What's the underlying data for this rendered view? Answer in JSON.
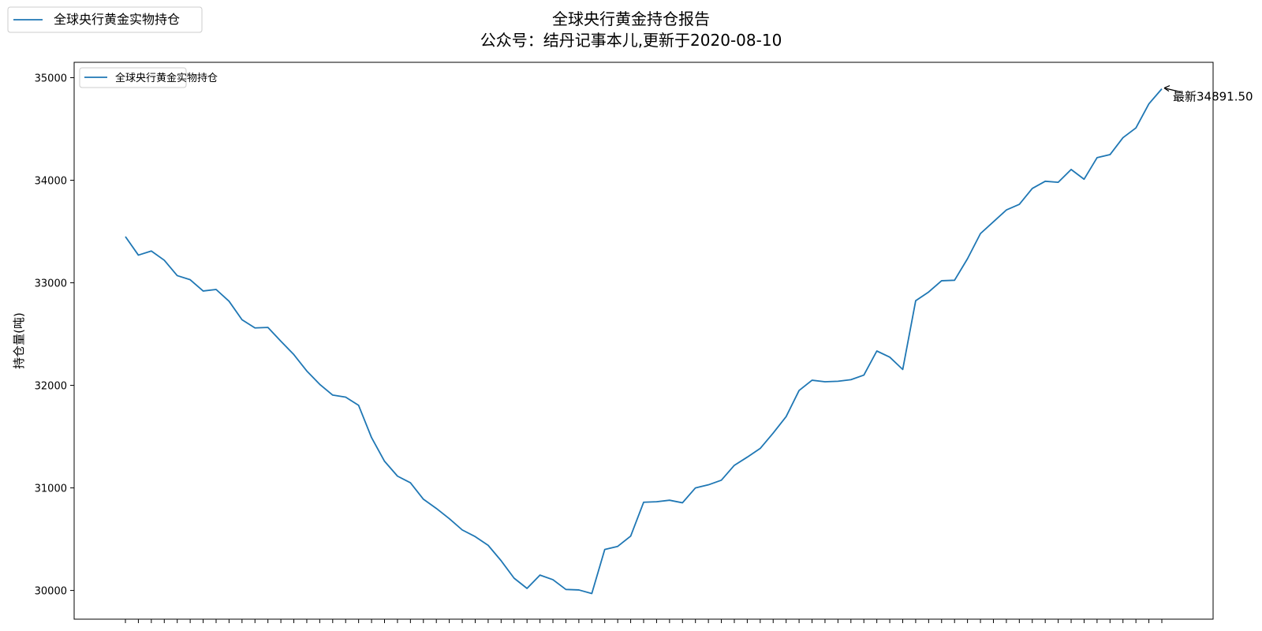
{
  "figure": {
    "title_line1": "全球央行黄金持仓报告",
    "title_line2": "公众号：结丹记事本儿,更新于2020-08-10"
  },
  "legends": {
    "outer_label": "全球央行黄金实物持仓",
    "inner_label": "全球央行黄金实物持仓"
  },
  "annotation": {
    "text": "最新34891.50"
  },
  "colors": {
    "line": "#1f77b4",
    "axes": "#000000",
    "legend_border": "#cccccc"
  },
  "chart_data": {
    "type": "line",
    "title": "全球央行黄金持仓报告",
    "subtitle": "公众号：结丹记事本儿,更新于2020-08-10",
    "xlabel": "",
    "ylabel": "持仓量(吨)",
    "ylim": [
      29720,
      35150
    ],
    "yticks": [
      30000,
      31000,
      32000,
      33000,
      34000,
      35000
    ],
    "grid": false,
    "legend_position": "upper left",
    "x_tick_labels_visible": false,
    "series": [
      {
        "name": "全球央行黄金实物持仓",
        "values": [
          33450,
          33270,
          33310,
          33220,
          33070,
          33030,
          32920,
          32935,
          32820,
          32640,
          32560,
          32565,
          32430,
          32300,
          32140,
          32010,
          31905,
          31885,
          31805,
          31490,
          31260,
          31115,
          31050,
          30890,
          30800,
          30700,
          30590,
          30525,
          30440,
          30290,
          30120,
          30020,
          30150,
          30105,
          30010,
          30005,
          29970,
          30400,
          30430,
          30530,
          30860,
          30865,
          30880,
          30855,
          31000,
          31030,
          31075,
          31220,
          31300,
          31385,
          31535,
          31695,
          31950,
          32050,
          32035,
          32040,
          32055,
          32100,
          32335,
          32275,
          32155,
          32825,
          32910,
          33020,
          33025,
          33235,
          33480,
          33595,
          33710,
          33765,
          33920,
          33990,
          33980,
          34105,
          34010,
          34220,
          34250,
          34415,
          34510,
          34745,
          34891.5
        ]
      }
    ]
  }
}
